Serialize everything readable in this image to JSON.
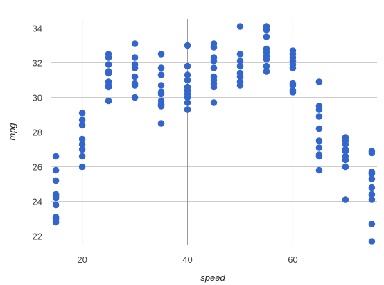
{
  "chart_data": {
    "type": "scatter",
    "xlabel": "speed",
    "ylabel": "mpg",
    "xlim": [
      14,
      76
    ],
    "ylim": [
      21.5,
      34.5
    ],
    "xticks": [
      20,
      40,
      60
    ],
    "yticks": [
      22,
      24,
      26,
      28,
      30,
      32,
      34
    ],
    "grid": true,
    "point_color": "#3366cc",
    "points": [
      [
        15,
        26.6
      ],
      [
        15,
        25.8
      ],
      [
        15,
        25.2
      ],
      [
        15,
        24.4
      ],
      [
        15,
        24.3
      ],
      [
        15,
        24.2
      ],
      [
        15,
        23.8
      ],
      [
        15,
        23.1
      ],
      [
        15,
        23.0
      ],
      [
        15,
        22.8
      ],
      [
        20,
        29.1
      ],
      [
        20,
        28.7
      ],
      [
        20,
        28.4
      ],
      [
        20,
        27.6
      ],
      [
        20,
        27.3
      ],
      [
        20,
        27.0
      ],
      [
        20,
        26.6
      ],
      [
        20,
        26.0
      ],
      [
        25,
        32.5
      ],
      [
        25,
        32.3
      ],
      [
        25,
        31.9
      ],
      [
        25,
        31.5
      ],
      [
        25,
        31.4
      ],
      [
        25,
        30.9
      ],
      [
        25,
        30.7
      ],
      [
        25,
        30.6
      ],
      [
        25,
        29.8
      ],
      [
        30,
        33.1
      ],
      [
        30,
        32.3
      ],
      [
        30,
        31.9
      ],
      [
        30,
        31.7
      ],
      [
        30,
        31.2
      ],
      [
        30,
        30.8
      ],
      [
        30,
        30.7
      ],
      [
        30,
        30.0
      ],
      [
        35,
        32.5
      ],
      [
        35,
        31.7
      ],
      [
        35,
        31.3
      ],
      [
        35,
        30.7
      ],
      [
        35,
        30.3
      ],
      [
        35,
        30.2
      ],
      [
        35,
        29.8
      ],
      [
        35,
        29.6
      ],
      [
        35,
        29.5
      ],
      [
        35,
        28.5
      ],
      [
        40,
        33.0
      ],
      [
        40,
        31.8
      ],
      [
        40,
        31.3
      ],
      [
        40,
        31.0
      ],
      [
        40,
        30.6
      ],
      [
        40,
        30.4
      ],
      [
        40,
        30.2
      ],
      [
        40,
        30.0
      ],
      [
        40,
        29.7
      ],
      [
        40,
        29.3
      ],
      [
        45,
        33.1
      ],
      [
        45,
        32.9
      ],
      [
        45,
        32.3
      ],
      [
        45,
        32.1
      ],
      [
        45,
        31.7
      ],
      [
        45,
        31.2
      ],
      [
        45,
        31.0
      ],
      [
        45,
        30.8
      ],
      [
        45,
        30.6
      ],
      [
        45,
        29.7
      ],
      [
        50,
        34.1
      ],
      [
        50,
        32.5
      ],
      [
        50,
        32.1
      ],
      [
        50,
        31.8
      ],
      [
        50,
        31.4
      ],
      [
        50,
        31.2
      ],
      [
        50,
        30.9
      ],
      [
        50,
        30.7
      ],
      [
        55,
        34.1
      ],
      [
        55,
        33.9
      ],
      [
        55,
        33.5
      ],
      [
        55,
        32.8
      ],
      [
        55,
        32.6
      ],
      [
        55,
        32.4
      ],
      [
        55,
        32.2
      ],
      [
        55,
        31.8
      ],
      [
        55,
        31.5
      ],
      [
        60,
        32.7
      ],
      [
        60,
        32.5
      ],
      [
        60,
        32.3
      ],
      [
        60,
        32.1
      ],
      [
        60,
        31.9
      ],
      [
        60,
        31.7
      ],
      [
        60,
        30.8
      ],
      [
        60,
        30.7
      ],
      [
        60,
        30.4
      ],
      [
        60,
        30.3
      ],
      [
        65,
        30.9
      ],
      [
        65,
        29.5
      ],
      [
        65,
        29.3
      ],
      [
        65,
        28.9
      ],
      [
        65,
        28.2
      ],
      [
        65,
        27.5
      ],
      [
        65,
        27.1
      ],
      [
        65,
        26.7
      ],
      [
        65,
        26.6
      ],
      [
        65,
        25.8
      ],
      [
        70,
        27.7
      ],
      [
        70,
        27.5
      ],
      [
        70,
        27.3
      ],
      [
        70,
        27.0
      ],
      [
        70,
        26.9
      ],
      [
        70,
        26.6
      ],
      [
        70,
        26.4
      ],
      [
        70,
        26.0
      ],
      [
        70,
        24.1
      ],
      [
        75,
        26.9
      ],
      [
        75,
        26.8
      ],
      [
        75,
        25.7
      ],
      [
        75,
        25.6
      ],
      [
        75,
        25.3
      ],
      [
        75,
        24.8
      ],
      [
        75,
        24.4
      ],
      [
        75,
        24.1
      ],
      [
        75,
        22.7
      ],
      [
        75,
        21.7
      ]
    ]
  }
}
